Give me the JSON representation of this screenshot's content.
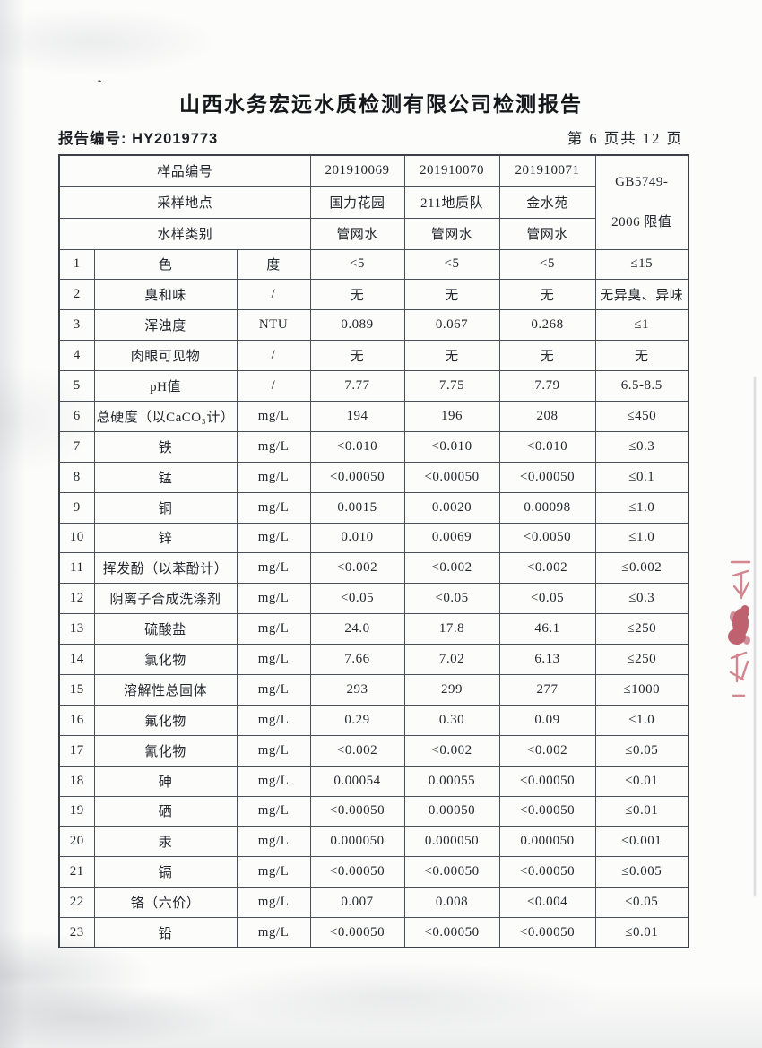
{
  "page": {
    "title": "山西水务宏远水质检测有限公司检测报告",
    "report_no": "报告编号: HY2019773",
    "page_indicator": "第 6 页共 12 页",
    "stray_mark": "`"
  },
  "artifacts": {
    "stamp_icon": "red-seal-fragment"
  },
  "table": {
    "header": {
      "sample_no_label": "样品编号",
      "sample_nos": [
        "201910069",
        "201910070",
        "201910071"
      ],
      "location_label": "采样地点",
      "locations": [
        "国力花园",
        "211地质队",
        "金水苑"
      ],
      "type_label": "水样类别",
      "types": [
        "管网水",
        "管网水",
        "管网水"
      ],
      "limit_line1": "GB5749-",
      "limit_line2": "2006 限值"
    },
    "rows": [
      {
        "no": "1",
        "item": "色",
        "unit": "度",
        "v1": "<5",
        "v2": "<5",
        "v3": "<5",
        "limit": "≤15"
      },
      {
        "no": "2",
        "item": "臭和味",
        "unit": "/",
        "v1": "无",
        "v2": "无",
        "v3": "无",
        "limit": "无异臭、异味"
      },
      {
        "no": "3",
        "item": "浑浊度",
        "unit": "NTU",
        "v1": "0.089",
        "v2": "0.067",
        "v3": "0.268",
        "limit": "≤1"
      },
      {
        "no": "4",
        "item": "肉眼可见物",
        "unit": "/",
        "v1": "无",
        "v2": "无",
        "v3": "无",
        "limit": "无"
      },
      {
        "no": "5",
        "item": "pH值",
        "unit": "/",
        "v1": "7.77",
        "v2": "7.75",
        "v3": "7.79",
        "limit": "6.5-8.5"
      },
      {
        "no": "6",
        "item": "总硬度（以CaCO₃计）",
        "unit": "mg/L",
        "v1": "194",
        "v2": "196",
        "v3": "208",
        "limit": "≤450"
      },
      {
        "no": "7",
        "item": "铁",
        "unit": "mg/L",
        "v1": "<0.010",
        "v2": "<0.010",
        "v3": "<0.010",
        "limit": "≤0.3"
      },
      {
        "no": "8",
        "item": "锰",
        "unit": "mg/L",
        "v1": "<0.00050",
        "v2": "<0.00050",
        "v3": "<0.00050",
        "limit": "≤0.1"
      },
      {
        "no": "9",
        "item": "铜",
        "unit": "mg/L",
        "v1": "0.0015",
        "v2": "0.0020",
        "v3": "0.00098",
        "limit": "≤1.0"
      },
      {
        "no": "10",
        "item": "锌",
        "unit": "mg/L",
        "v1": "0.010",
        "v2": "0.0069",
        "v3": "<0.0050",
        "limit": "≤1.0"
      },
      {
        "no": "11",
        "item": "挥发酚（以苯酚计）",
        "unit": "mg/L",
        "v1": "<0.002",
        "v2": "<0.002",
        "v3": "<0.002",
        "limit": "≤0.002"
      },
      {
        "no": "12",
        "item": "阴离子合成洗涤剂",
        "unit": "mg/L",
        "v1": "<0.05",
        "v2": "<0.05",
        "v3": "<0.05",
        "limit": "≤0.3"
      },
      {
        "no": "13",
        "item": "硫酸盐",
        "unit": "mg/L",
        "v1": "24.0",
        "v2": "17.8",
        "v3": "46.1",
        "limit": "≤250"
      },
      {
        "no": "14",
        "item": "氯化物",
        "unit": "mg/L",
        "v1": "7.66",
        "v2": "7.02",
        "v3": "6.13",
        "limit": "≤250"
      },
      {
        "no": "15",
        "item": "溶解性总固体",
        "unit": "mg/L",
        "v1": "293",
        "v2": "299",
        "v3": "277",
        "limit": "≤1000"
      },
      {
        "no": "16",
        "item": "氟化物",
        "unit": "mg/L",
        "v1": "0.29",
        "v2": "0.30",
        "v3": "0.09",
        "limit": "≤1.0"
      },
      {
        "no": "17",
        "item": "氰化物",
        "unit": "mg/L",
        "v1": "<0.002",
        "v2": "<0.002",
        "v3": "<0.002",
        "limit": "≤0.05"
      },
      {
        "no": "18",
        "item": "砷",
        "unit": "mg/L",
        "v1": "0.00054",
        "v2": "0.00055",
        "v3": "<0.00050",
        "limit": "≤0.01"
      },
      {
        "no": "19",
        "item": "硒",
        "unit": "mg/L",
        "v1": "<0.00050",
        "v2": "0.00050",
        "v3": "<0.00050",
        "limit": "≤0.01"
      },
      {
        "no": "20",
        "item": "汞",
        "unit": "mg/L",
        "v1": "0.000050",
        "v2": "0.000050",
        "v3": "0.000050",
        "limit": "≤0.001"
      },
      {
        "no": "21",
        "item": "镉",
        "unit": "mg/L",
        "v1": "<0.00050",
        "v2": "<0.00050",
        "v3": "<0.00050",
        "limit": "≤0.005"
      },
      {
        "no": "22",
        "item": "铬（六价）",
        "unit": "mg/L",
        "v1": "0.007",
        "v2": "0.008",
        "v3": "<0.004",
        "limit": "≤0.05"
      },
      {
        "no": "23",
        "item": "铅",
        "unit": "mg/L",
        "v1": "<0.00050",
        "v2": "<0.00050",
        "v3": "<0.00050",
        "limit": "≤0.01"
      }
    ]
  }
}
